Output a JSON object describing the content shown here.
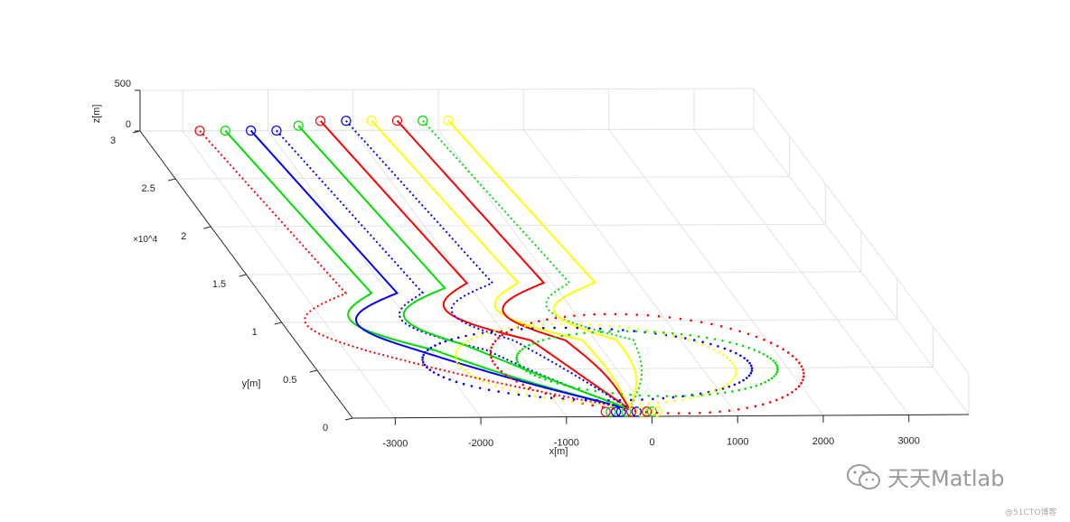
{
  "chart_data": {
    "type": "3d-line",
    "title": "",
    "xlabel": "x[m]",
    "ylabel": "y[m]",
    "zlabel": "z[m]",
    "y_exponent": "×10^4",
    "xticks": [
      "-3000",
      "-2000",
      "-1000",
      "0",
      "1000",
      "2000",
      "3000"
    ],
    "yticks": [
      "0",
      "0.5",
      "1",
      "1.5",
      "2",
      "2.5",
      "3"
    ],
    "zticks": [
      "0",
      "500"
    ],
    "xlim": [
      -3500,
      3700
    ],
    "ylim": [
      0,
      30000
    ],
    "zlim": [
      0,
      500
    ],
    "grid": true,
    "series": [
      {
        "color": "#ff0000",
        "x_start": -2800,
        "y_start": 30000
      },
      {
        "color": "#00dd00",
        "x_start": -2500,
        "y_start": 30000
      },
      {
        "color": "#0000ff",
        "x_start": -2200,
        "y_start": 30000
      },
      {
        "color": "#0000ff",
        "x_start": -1900,
        "y_start": 30000
      },
      {
        "color": "#00dd00",
        "x_start": -1600,
        "y_start": 30500
      },
      {
        "color": "#ff0000",
        "x_start": -1300,
        "y_start": 31000
      },
      {
        "color": "#0000ff",
        "x_start": -1000,
        "y_start": 31000
      },
      {
        "color": "#ffff00",
        "x_start": -700,
        "y_start": 31000
      },
      {
        "color": "#ff0000",
        "x_start": -400,
        "y_start": 31000
      },
      {
        "color": "#00dd00",
        "x_start": -100,
        "y_start": 31000
      },
      {
        "color": "#ffff00",
        "x_start": 200,
        "y_start": 31000
      }
    ]
  },
  "watermark": {
    "text": "天天Matlab",
    "sub": "@51CTO博客"
  }
}
